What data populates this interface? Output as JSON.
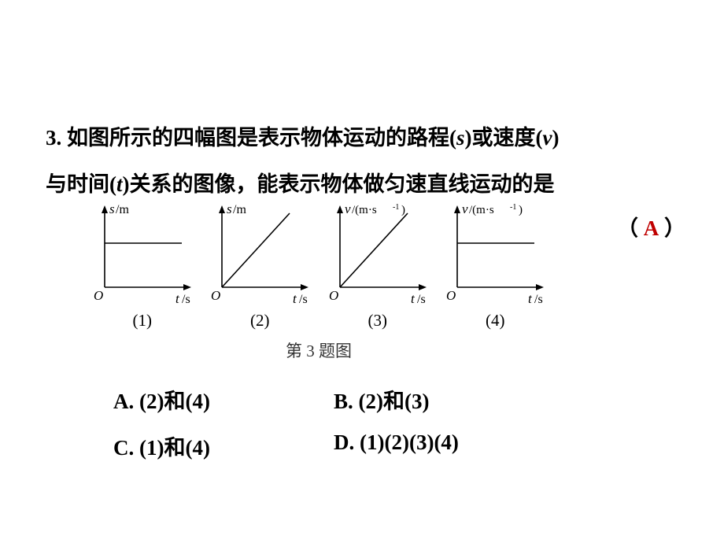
{
  "question": {
    "number": "3.",
    "line1a": "3. 如图所示的四幅图是表示物体运动的路程(",
    "s": "s",
    "line1b": ")或速度(",
    "v": "v",
    "line1c": ")",
    "line2a": "与时间(",
    "t": "t",
    "line2b": ")关系的图像，能表示物体做匀速直线运动的是"
  },
  "paren": {
    "open": "（",
    "answer": "A",
    "close": "）"
  },
  "figure": {
    "caption": "第 3 题图",
    "graphs": [
      {
        "num": "(1)",
        "ylabel_type": "s",
        "curve": "hline"
      },
      {
        "num": "(2)",
        "ylabel_type": "s",
        "curve": "diag"
      },
      {
        "num": "(3)",
        "ylabel_type": "v",
        "curve": "diag"
      },
      {
        "num": "(4)",
        "ylabel_type": "v",
        "curve": "hline"
      }
    ],
    "axis": {
      "origin": "O",
      "xlabel_t": "t",
      "xlabel_unit": "/s",
      "ylabel_s": "s",
      "ylabel_s_unit": "/m",
      "ylabel_v": "v",
      "ylabel_v_unit": "/(m·s",
      "ylabel_v_sup": "-1",
      "ylabel_v_close": ")",
      "stroke": "#000000",
      "stroke_width": 1.6
    }
  },
  "options": {
    "A": "A. (2)和(4)",
    "B": "B. (2)和(3)",
    "C": "C. (1)和(4)",
    "D": "D. (1)(2)(3)(4)"
  },
  "colors": {
    "answer": "#c00000",
    "text": "#000000",
    "bg": "#ffffff"
  }
}
